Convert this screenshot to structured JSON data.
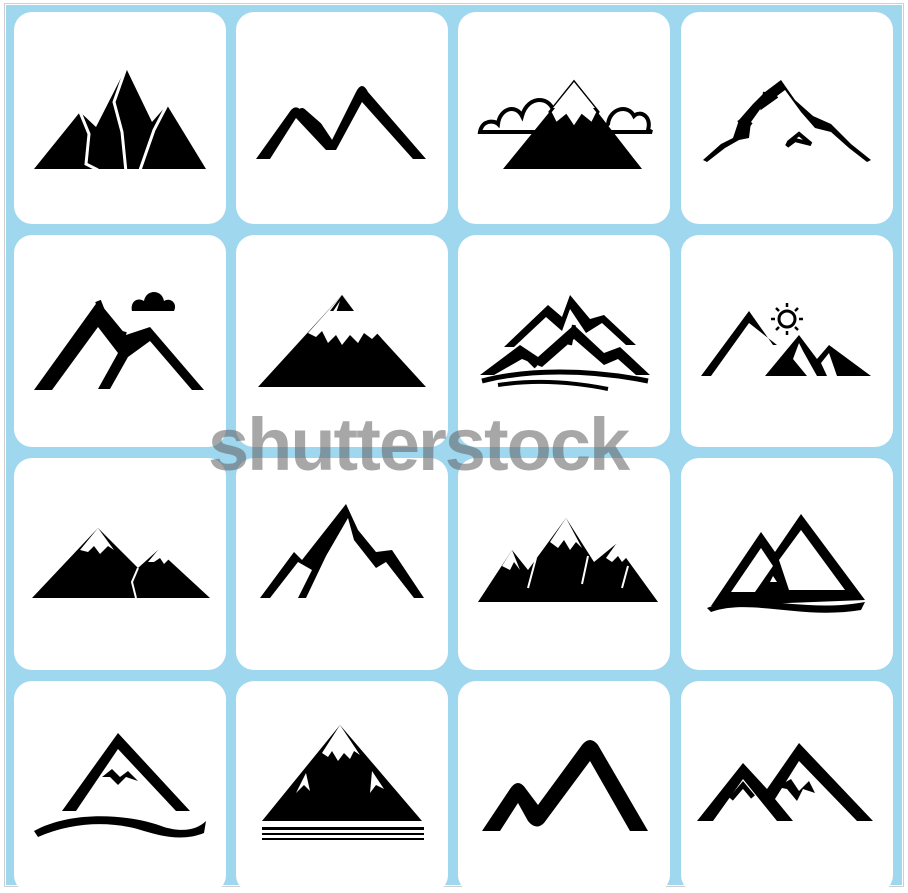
{
  "watermark": {
    "text": "shutterstock"
  },
  "colors": {
    "background": "#9fd7ef",
    "tile": "#ffffff",
    "icon": "#000000",
    "watermark": "#5f5f5f"
  },
  "icons": [
    "peaks-icon",
    "twin-peaks-outline-icon",
    "mountain-clouds-icon",
    "rocky-ridge-icon",
    "mountain-cloud-icon",
    "snowy-peak-icon",
    "layered-mountains-icon",
    "mountain-sun-icon",
    "snowy-range-icon",
    "spiky-peaks-icon",
    "jagged-range-icon",
    "triangle-mountain-logo-icon",
    "mountain-wave-icon",
    "snowy-summit-icon",
    "wavy-peaks-icon",
    "double-peak-outline-icon"
  ]
}
